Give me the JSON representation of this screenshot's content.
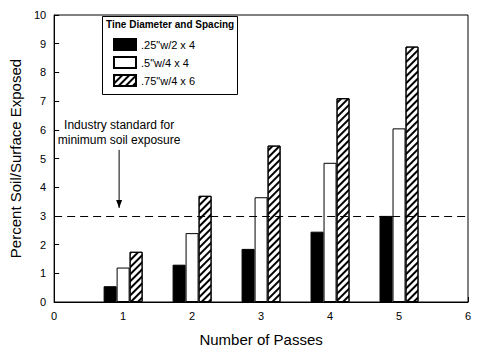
{
  "chart_data": {
    "type": "bar",
    "x": [
      1,
      2,
      3,
      4,
      5
    ],
    "series": [
      {
        "name": ".25\"w/2 x 4",
        "color": "#000000",
        "marker": "solid",
        "values": [
          0.55,
          1.3,
          1.85,
          2.45,
          3.0
        ]
      },
      {
        "name": ".5\"w/4 x 4",
        "color": "#ffffff",
        "marker": "solid",
        "values": [
          1.2,
          2.4,
          3.65,
          4.85,
          6.05
        ]
      },
      {
        "name": ".75\"w/4 x 6",
        "color": "#ffffff",
        "marker": "hatched",
        "values": [
          1.75,
          3.7,
          5.45,
          7.1,
          8.9
        ]
      }
    ],
    "xlabel": "Number of Passes",
    "ylabel": "Percent Soil/Surface Exposed",
    "legend_title": "Tine Diameter and Spacing",
    "legend": "upper left",
    "reference_line": 3,
    "annotation": "Industry standard for\nminimum soil exposure",
    "xlim": [
      0,
      6
    ],
    "xticks": [
      0,
      1,
      2,
      3,
      4,
      5,
      6
    ],
    "ylim": [
      0,
      10
    ],
    "yticks": [
      0,
      1,
      2,
      3,
      4,
      5,
      6,
      7,
      8,
      9,
      10
    ],
    "grid": false
  }
}
